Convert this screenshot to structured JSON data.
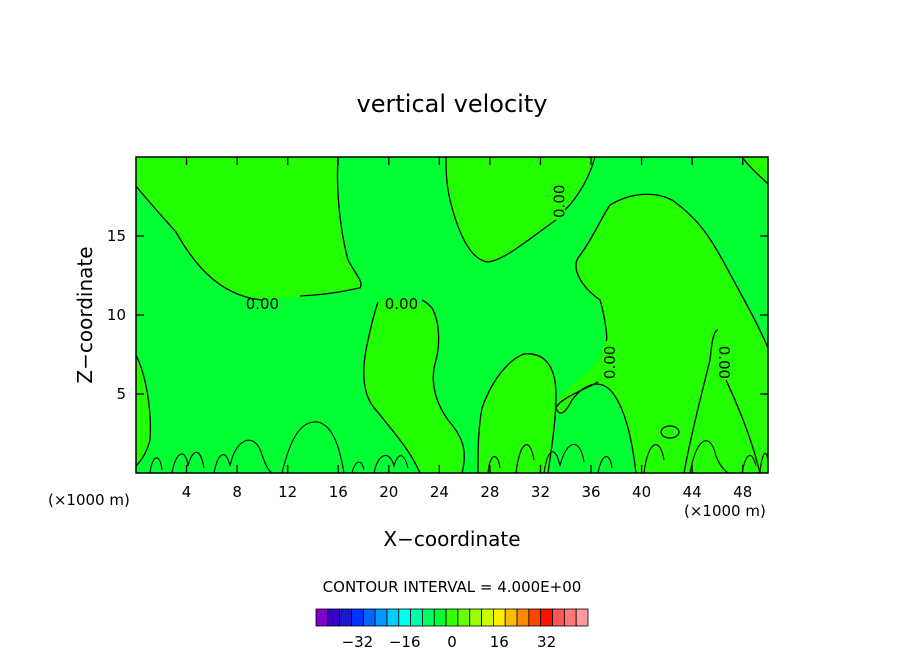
{
  "chart_data": {
    "type": "contour",
    "title": "vertical velocity",
    "xlabel": "X−coordinate",
    "ylabel": "Z−coordinate",
    "x_unit_left": "(×1000 m)",
    "x_unit_right": "(×1000 m)",
    "xlim": [
      0,
      50
    ],
    "ylim": [
      0,
      20
    ],
    "xticks": [
      4,
      8,
      12,
      16,
      20,
      24,
      28,
      32,
      36,
      40,
      44,
      48
    ],
    "yticks": [
      5,
      10,
      15
    ],
    "xtick_labels": [
      "4",
      "8",
      "12",
      "16",
      "20",
      "24",
      "28",
      "32",
      "36",
      "40",
      "44",
      "48"
    ],
    "ytick_labels": [
      "5",
      "10",
      "15"
    ],
    "contour_interval_text": "CONTOUR INTERVAL = 4.000E+00",
    "contour_labels": [
      {
        "text": "0.00",
        "x": 10,
        "z": 10.7,
        "rotate": 0
      },
      {
        "text": "0.00",
        "x": 21,
        "z": 10.7,
        "rotate": 0
      },
      {
        "text": "0.00",
        "x": 33.5,
        "z": 17.2,
        "rotate": -90
      },
      {
        "text": "0.00",
        "x": 37.5,
        "z": 7.0,
        "rotate": -90
      },
      {
        "text": "0.00",
        "x": 46.5,
        "z": 7.0,
        "rotate": 90
      }
    ],
    "region_colors": {
      "negative_small": "#00ff33",
      "positive_small": "#22ff00"
    },
    "colorbar": {
      "colors": [
        "#7f00c8",
        "#3a00c8",
        "#1a1acc",
        "#0033ff",
        "#0066ff",
        "#0099ff",
        "#00ccff",
        "#00ffee",
        "#00ffaa",
        "#00ff66",
        "#00ff33",
        "#33ff00",
        "#66ff00",
        "#99ff00",
        "#ccff00",
        "#ffee00",
        "#ffbb00",
        "#ff8800",
        "#ff4400",
        "#ff1100",
        "#ff5555",
        "#ff7777",
        "#ff9999"
      ],
      "tick_labels": [
        "−32",
        "−16",
        "0",
        "16",
        "32"
      ],
      "tick_values": [
        -32,
        -16,
        0,
        16,
        32
      ]
    }
  }
}
